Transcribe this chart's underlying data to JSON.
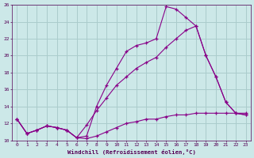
{
  "xlabel": "Windchill (Refroidissement éolien,°C)",
  "background_color": "#cce8e8",
  "grid_color": "#aacccc",
  "line_color": "#880088",
  "xlim": [
    -0.5,
    23.5
  ],
  "ylim": [
    10,
    26
  ],
  "xticks": [
    0,
    1,
    2,
    3,
    4,
    5,
    6,
    7,
    8,
    9,
    10,
    11,
    12,
    13,
    14,
    15,
    16,
    17,
    18,
    19,
    20,
    21,
    22,
    23
  ],
  "yticks": [
    10,
    12,
    14,
    16,
    18,
    20,
    22,
    24,
    26
  ],
  "series1_x": [
    0,
    1,
    2,
    3,
    4,
    5,
    6,
    7,
    8,
    9,
    10,
    11,
    12,
    13,
    14,
    15,
    16,
    17,
    18,
    19,
    20,
    21,
    22,
    23
  ],
  "series1_y": [
    12.5,
    10.8,
    11.2,
    11.7,
    11.5,
    11.2,
    10.3,
    10.5,
    14.0,
    16.5,
    18.5,
    20.5,
    21.2,
    21.5,
    22.0,
    25.8,
    25.5,
    24.5,
    23.5,
    20.0,
    17.5,
    14.5,
    13.2,
    13.0
  ],
  "series2_x": [
    0,
    1,
    2,
    3,
    4,
    5,
    6,
    7,
    8,
    9,
    10,
    11,
    12,
    13,
    14,
    15,
    16,
    17,
    18,
    19,
    20,
    21,
    22,
    23
  ],
  "series2_y": [
    12.5,
    10.8,
    11.2,
    11.7,
    11.5,
    11.2,
    10.3,
    11.8,
    13.5,
    15.0,
    16.5,
    17.5,
    18.5,
    19.2,
    19.8,
    21.0,
    22.0,
    23.0,
    23.5,
    20.0,
    17.5,
    14.5,
    13.2,
    13.0
  ],
  "series3_x": [
    0,
    1,
    2,
    3,
    4,
    5,
    6,
    7,
    8,
    9,
    10,
    11,
    12,
    13,
    14,
    15,
    16,
    17,
    18,
    19,
    20,
    21,
    22,
    23
  ],
  "series3_y": [
    12.5,
    10.8,
    11.2,
    11.7,
    11.5,
    11.2,
    10.3,
    10.2,
    10.5,
    11.0,
    11.5,
    12.0,
    12.2,
    12.5,
    12.5,
    12.8,
    13.0,
    13.0,
    13.2,
    13.2,
    13.2,
    13.2,
    13.2,
    13.2
  ]
}
